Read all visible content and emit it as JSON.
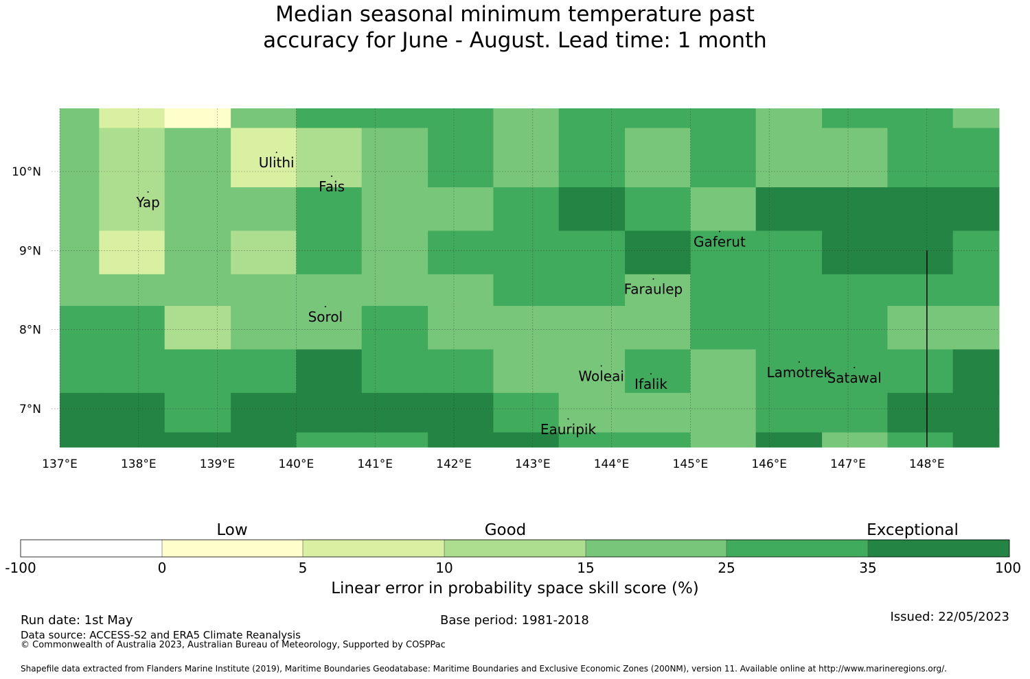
{
  "title": {
    "line1": "Median seasonal minimum temperature past",
    "line2": "accuracy for June - August. Lead time: 1 month"
  },
  "colors": {
    "band_0": "#ffffcc",
    "band_1": "#d9f0a3",
    "band_2": "#addd8e",
    "band_3": "#78c679",
    "band_4": "#41ab5d",
    "band_5": "#238443",
    "band_neg": "#ffffff",
    "grid": "#333333"
  },
  "chart_data": {
    "type": "heatmap",
    "x_ticks": [
      "137°E",
      "138°E",
      "139°E",
      "140°E",
      "141°E",
      "142°E",
      "143°E",
      "144°E",
      "145°E",
      "146°E",
      "147°E",
      "148°E"
    ],
    "y_ticks": [
      "10°N",
      "9°N",
      "8°N",
      "7°N"
    ],
    "x_tick_values": [
      137,
      138,
      139,
      140,
      141,
      142,
      143,
      144,
      145,
      146,
      147,
      148
    ],
    "y_tick_values": [
      10,
      9,
      8,
      7
    ],
    "lon_range": [
      137,
      149
    ],
    "lat_range": [
      6.5,
      10.8
    ],
    "cell_size_deg": 0.833,
    "cell_lon_edges": [
      137,
      137.5,
      138.33,
      139.17,
      140,
      140.83,
      141.67,
      142.5,
      143.33,
      144.17,
      145,
      145.83,
      146.67,
      147.5,
      148.33,
      149
    ],
    "cell_lat_edges": [
      10.8,
      10.55,
      9.8,
      9.25,
      8.7,
      8.3,
      7.75,
      7.2,
      6.7,
      6.5
    ],
    "grid_bands": [
      [
        3,
        1,
        0,
        3,
        4,
        4,
        4,
        3,
        4,
        4,
        4,
        3,
        4,
        4,
        3
      ],
      [
        3,
        2,
        3,
        1,
        2,
        3,
        4,
        3,
        4,
        3,
        4,
        3,
        3,
        4,
        4
      ],
      [
        3,
        2,
        3,
        3,
        4,
        3,
        3,
        4,
        5,
        4,
        3,
        5,
        5,
        5,
        5
      ],
      [
        3,
        1,
        3,
        2,
        4,
        3,
        4,
        4,
        4,
        5,
        4,
        4,
        5,
        5,
        4
      ],
      [
        3,
        3,
        3,
        3,
        3,
        3,
        3,
        4,
        4,
        3,
        4,
        4,
        4,
        4,
        4
      ],
      [
        4,
        4,
        2,
        3,
        3,
        4,
        3,
        3,
        3,
        3,
        4,
        4,
        4,
        3,
        3
      ],
      [
        4,
        4,
        4,
        4,
        5,
        4,
        4,
        3,
        3,
        4,
        3,
        4,
        4,
        4,
        5
      ],
      [
        5,
        5,
        4,
        5,
        5,
        5,
        5,
        4,
        3,
        3,
        3,
        4,
        4,
        5,
        5
      ],
      [
        5,
        5,
        5,
        5,
        4,
        4,
        5,
        5,
        4,
        4,
        3,
        5,
        3,
        4,
        5
      ]
    ],
    "places": [
      {
        "name": "Ulithi",
        "lon": 139.75,
        "lat": 10.05
      },
      {
        "name": "Fais",
        "lon": 140.45,
        "lat": 9.75
      },
      {
        "name": "Yap",
        "lon": 138.12,
        "lat": 9.55
      },
      {
        "name": "Gaferut",
        "lon": 145.37,
        "lat": 9.05
      },
      {
        "name": "Faraulep",
        "lon": 144.53,
        "lat": 8.45
      },
      {
        "name": "Sorol",
        "lon": 140.37,
        "lat": 8.1
      },
      {
        "name": "Woleai",
        "lon": 143.87,
        "lat": 7.35
      },
      {
        "name": "Ifalik",
        "lon": 144.5,
        "lat": 7.25
      },
      {
        "name": "Lamotrek",
        "lon": 146.38,
        "lat": 7.4
      },
      {
        "name": "Satawal",
        "lon": 147.08,
        "lat": 7.33
      },
      {
        "name": "Eauripik",
        "lon": 143.45,
        "lat": 6.68
      }
    ],
    "boundary_line": {
      "lon": 148,
      "lat_from": 9,
      "lat_to": 6.5
    },
    "colorbar": {
      "ticks": [
        "-100",
        "0",
        "5",
        "10",
        "15",
        "25",
        "35",
        "100"
      ],
      "categories": [
        "Low",
        "Good",
        "Exceptional"
      ],
      "label": "Linear error in probability space skill score (%)"
    }
  },
  "footer": {
    "run_date": "Run date: 1st May",
    "base_period": "Base period: 1981-2018",
    "issued": "Issued: 22/05/2023",
    "data_source": "Data source: ACCESS-S2 and ERA5 Climate Reanalysis",
    "copyright": "© Commonwealth of Australia 2023, Australian Bureau of Meteorology, Supported by COSPPac",
    "shapefile": "Shapefile data extracted from Flanders Marine Institute (2019), Maritime Boundaries Geodatabase: Maritime Boundaries and Exclusive Economic Zones (200NM), version 11. Available online at http://www.marineregions.org/."
  }
}
